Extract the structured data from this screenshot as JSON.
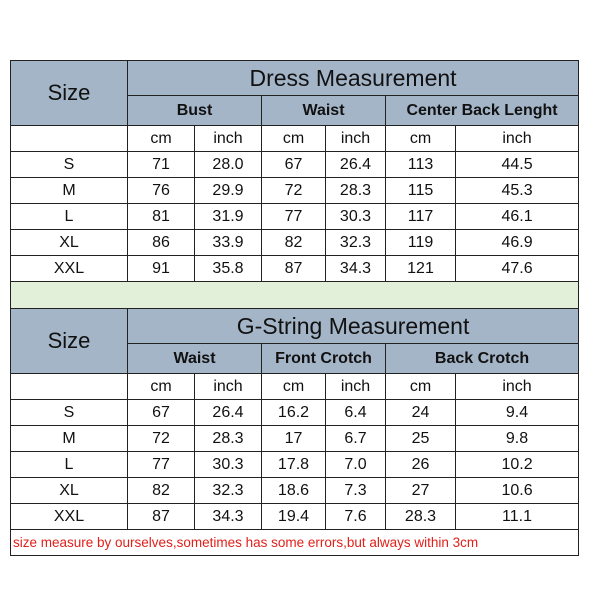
{
  "dress": {
    "title": "Dress Measurement",
    "size_label": "Size",
    "groups": [
      "Bust",
      "Waist",
      "Center Back Lenght"
    ],
    "units": [
      "cm",
      "inch",
      "cm",
      "inch",
      "cm",
      "inch"
    ],
    "rows": [
      [
        "S",
        "71",
        "28.0",
        "67",
        "26.4",
        "113",
        "44.5"
      ],
      [
        "M",
        "76",
        "29.9",
        "72",
        "28.3",
        "115",
        "45.3"
      ],
      [
        "L",
        "81",
        "31.9",
        "77",
        "30.3",
        "117",
        "46.1"
      ],
      [
        "XL",
        "86",
        "33.9",
        "82",
        "32.3",
        "119",
        "46.9"
      ],
      [
        "XXL",
        "91",
        "35.8",
        "87",
        "34.3",
        "121",
        "47.6"
      ]
    ]
  },
  "gstring": {
    "title": "G-String Measurement",
    "size_label": "Size",
    "groups": [
      "Waist",
      "Front Crotch",
      "Back Crotch"
    ],
    "units": [
      "cm",
      "inch",
      "cm",
      "inch",
      "cm",
      "inch"
    ],
    "rows": [
      [
        "S",
        "67",
        "26.4",
        "16.2",
        "6.4",
        "24",
        "9.4"
      ],
      [
        "M",
        "72",
        "28.3",
        "17",
        "6.7",
        "25",
        "9.8"
      ],
      [
        "L",
        "77",
        "30.3",
        "17.8",
        "7.0",
        "26",
        "10.2"
      ],
      [
        "XL",
        "82",
        "32.3",
        "18.6",
        "7.3",
        "27",
        "10.6"
      ],
      [
        "XXL",
        "87",
        "34.3",
        "19.4",
        "7.6",
        "28.3",
        "11.1"
      ]
    ]
  },
  "note": "size measure by ourselves,sometimes has some errors,but always within 3cm",
  "colors": {
    "header_bg": "#a4b5c8",
    "spacer_bg": "#e3f0d9",
    "note_text": "#e0201a"
  }
}
